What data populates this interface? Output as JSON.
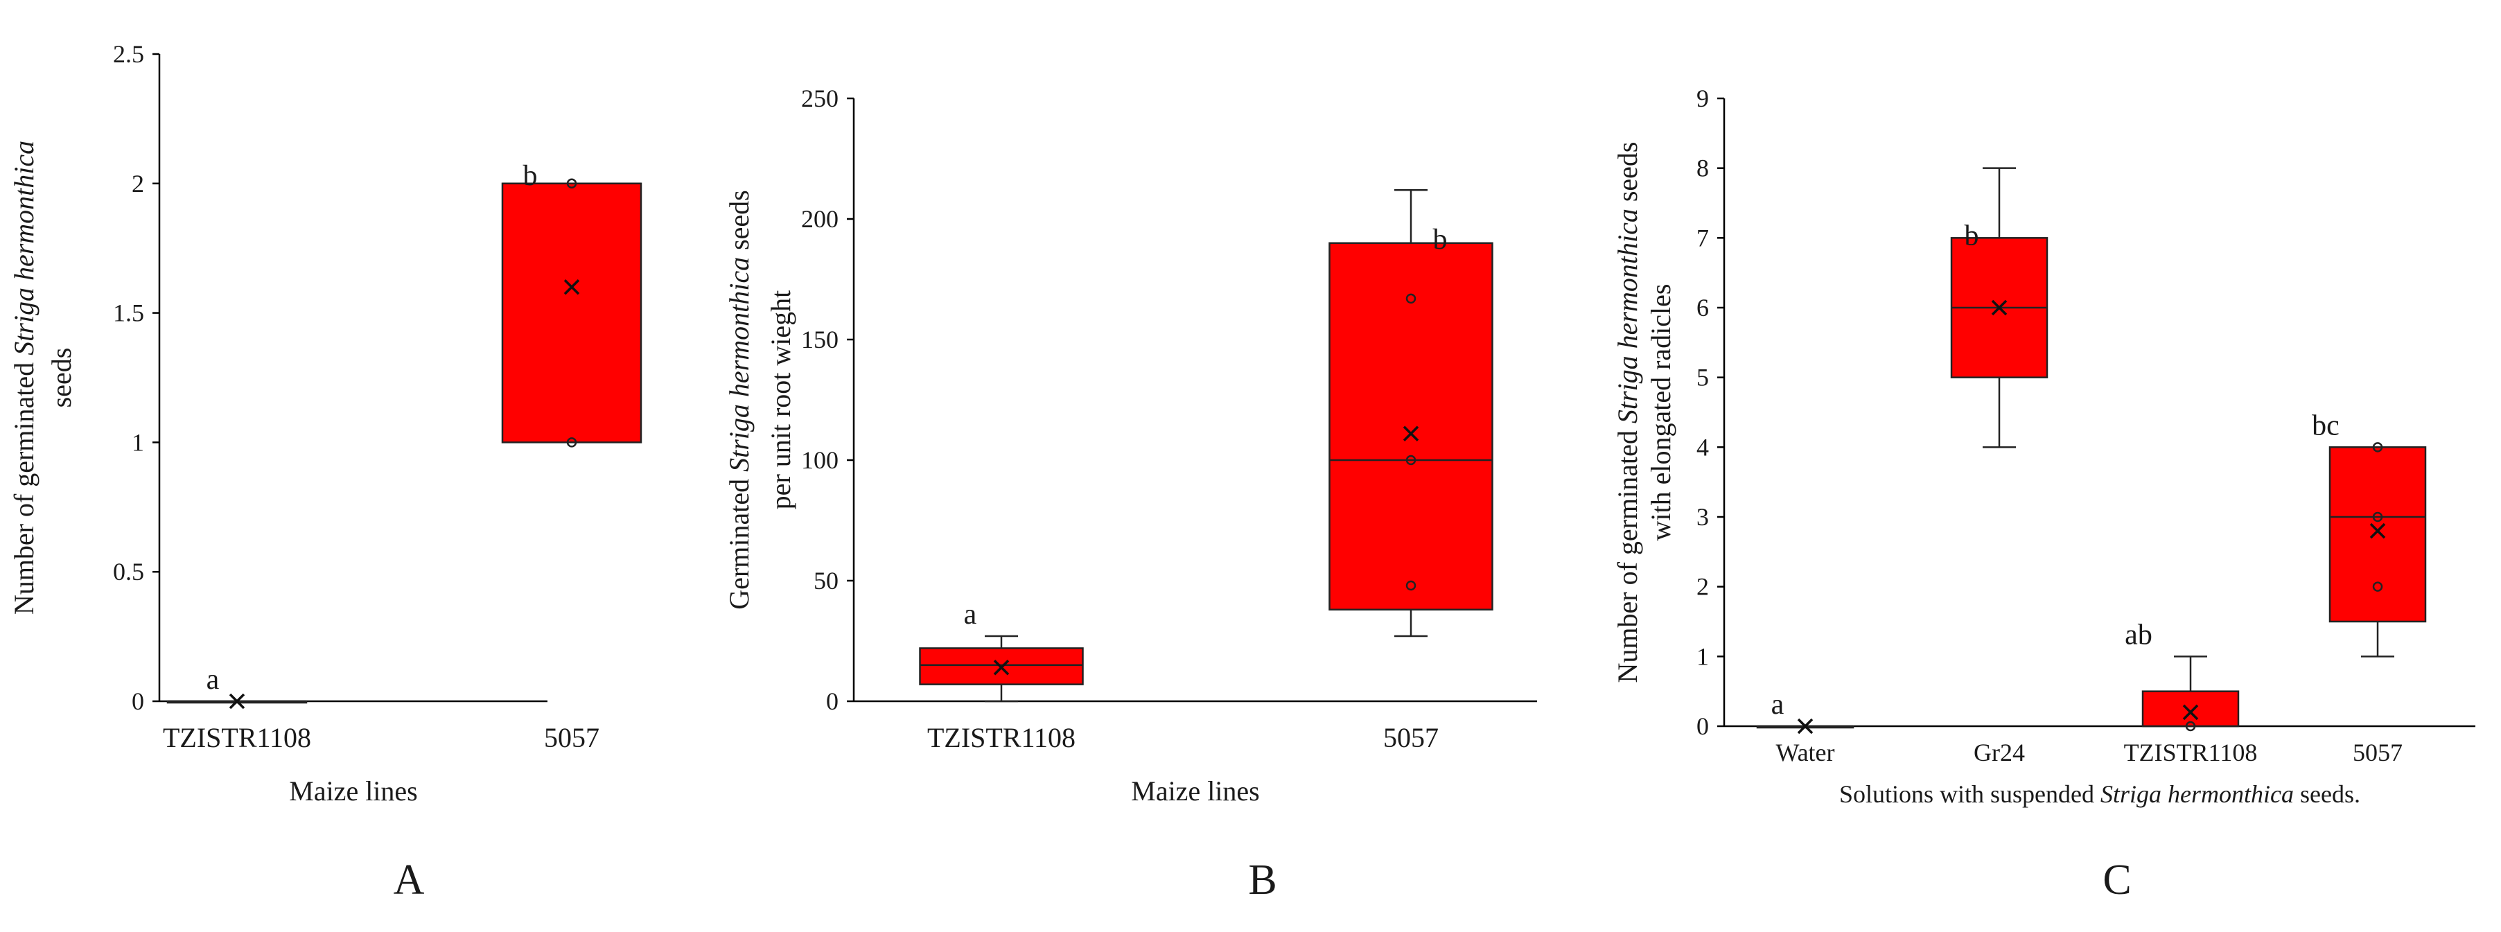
{
  "chart_data": [
    {
      "type": "box",
      "panel_label": "A",
      "xlabel": "Maize lines",
      "ylabel_lines": [
        {
          "plain": "Number of germinated ",
          "italic": "Striga hermonthica",
          "after": ""
        },
        {
          "plain": "seeds",
          "italic": "",
          "after": ""
        }
      ],
      "ylim": [
        0,
        2.5
      ],
      "yticks": [
        0,
        0.5,
        1,
        1.5,
        2,
        2.5
      ],
      "ytick_labels": [
        "0",
        "0.5",
        "1",
        "1.5",
        "2",
        "2.5"
      ],
      "categories": [
        "TZISTR1108",
        "5057"
      ],
      "boxes": [
        {
          "min": 0,
          "q1": 0,
          "median": 0,
          "q3": 0,
          "max": 0,
          "mean": 0,
          "points": [],
          "letter": "a"
        },
        {
          "min": 1,
          "q1": 1,
          "median": 2,
          "q3": 2,
          "max": 2,
          "mean": 1.6,
          "points": [
            2,
            1
          ],
          "letter": "b"
        }
      ],
      "box_color": "#ff0000"
    },
    {
      "type": "box",
      "panel_label": "B",
      "xlabel": "Maize lines",
      "ylabel_lines": [
        {
          "plain": "Germinated ",
          "italic": "Striga hermonthica",
          "after": " seeds"
        },
        {
          "plain": "per unit root wieght",
          "italic": "",
          "after": ""
        }
      ],
      "ylim": [
        0,
        250
      ],
      "yticks": [
        0,
        50,
        100,
        150,
        200,
        250
      ],
      "ytick_labels": [
        "0",
        "50",
        "100",
        "150",
        "200",
        "250"
      ],
      "categories": [
        "TZISTR1108",
        "5057"
      ],
      "boxes": [
        {
          "min": 0,
          "q1": 7,
          "median": 15,
          "q3": 22,
          "max": 27,
          "mean": 14,
          "points": [],
          "letter": "a"
        },
        {
          "min": 27,
          "q1": 38,
          "median": 100,
          "q3": 190,
          "max": 212,
          "mean": 111,
          "points": [
            167,
            100,
            48
          ],
          "letter": "b"
        }
      ],
      "box_color": "#ff0000"
    },
    {
      "type": "box",
      "panel_label": "C",
      "xlabel_parts": {
        "plain": "Solutions with suspended ",
        "italic": "Striga hermonthica",
        "after": " seeds."
      },
      "ylabel_lines": [
        {
          "plain": "Number of germinated ",
          "italic": "Striga hermonthica",
          "after": " seeds"
        },
        {
          "plain": "with elongated radicles",
          "italic": "",
          "after": ""
        }
      ],
      "ylim": [
        0,
        9
      ],
      "yticks": [
        0,
        1,
        2,
        3,
        4,
        5,
        6,
        7,
        8,
        9
      ],
      "ytick_labels": [
        "0",
        "1",
        "2",
        "3",
        "4",
        "5",
        "6",
        "7",
        "8",
        "9"
      ],
      "categories": [
        "Water",
        "Gr24",
        "TZISTR1108",
        "5057"
      ],
      "boxes": [
        {
          "min": 0,
          "q1": 0,
          "median": 0,
          "q3": 0,
          "max": 0,
          "mean": 0,
          "points": [],
          "letter": "a"
        },
        {
          "min": 4,
          "q1": 5,
          "median": 6,
          "q3": 7,
          "max": 8,
          "mean": 6,
          "points": [],
          "letter": "b"
        },
        {
          "min": 0,
          "q1": 0,
          "median": 0,
          "q3": 0.5,
          "max": 1,
          "mean": 0.2,
          "points": [
            0
          ],
          "letter": "ab"
        },
        {
          "min": 1,
          "q1": 1.5,
          "median": 3,
          "q3": 4,
          "max": 4,
          "mean": 2.8,
          "points": [
            4,
            3,
            2
          ],
          "letter": "bc"
        }
      ],
      "box_color": "#ff0000"
    }
  ]
}
